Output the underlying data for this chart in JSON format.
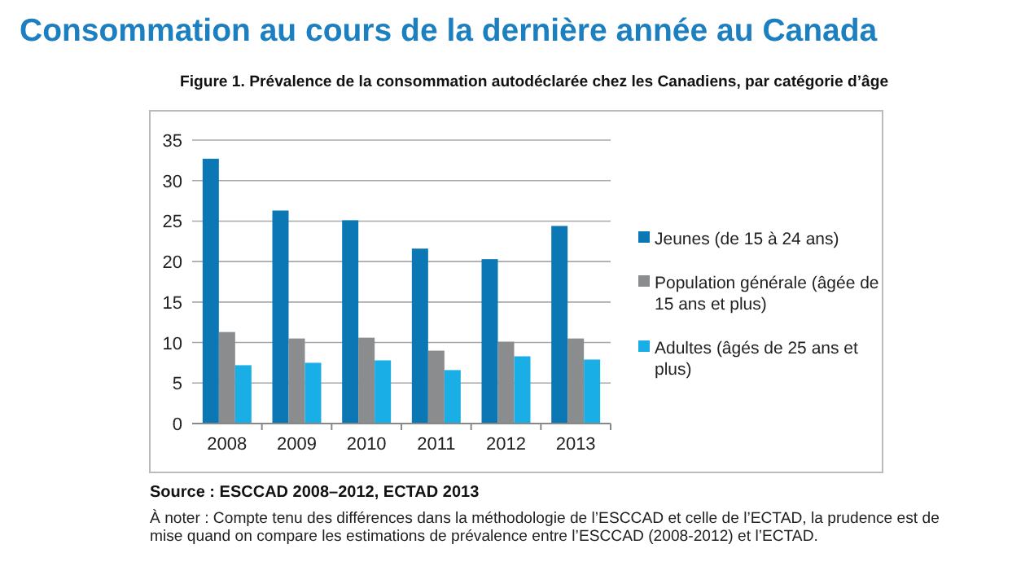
{
  "chart_data": {
    "type": "bar",
    "title": "Consommation au cours de la dernière année au Canada",
    "subtitle": "Figure 1. Prévalence de la consommation autodéclarée chez les Canadiens, par catégorie d’âge",
    "categories": [
      "2008",
      "2009",
      "2010",
      "2011",
      "2012",
      "2013"
    ],
    "series": [
      {
        "name": "Jeunes (de 15 à 24 ans)",
        "color": "#0b77b5",
        "values": [
          32.7,
          26.3,
          25.1,
          21.6,
          20.3,
          24.4
        ]
      },
      {
        "name": "Population générale (âgée de 15 ans et plus)",
        "color": "#8a8c8e",
        "values": [
          11.3,
          10.5,
          10.6,
          9.0,
          10.1,
          10.5
        ]
      },
      {
        "name": "Adultes (âgés de 25 ans et plus)",
        "color": "#1aaee6",
        "values": [
          7.2,
          7.5,
          7.8,
          6.6,
          8.3,
          7.9
        ]
      }
    ],
    "ylim": [
      0,
      35
    ],
    "yticks": [
      0,
      5,
      10,
      15,
      20,
      25,
      30,
      35
    ],
    "grid": "y",
    "legend": "right",
    "annotations": [
      "Source : ESCCAD 2008–2012, ECTAD 2013",
      "À noter : Compte tenu des différences dans la méthodologie de l’ESCCAD et celle de l’ECTAD, la prudence est de mise quand on compare les estimations de prévalence entre l’ESCCAD (2008-2012) et l’ECTAD."
    ]
  }
}
